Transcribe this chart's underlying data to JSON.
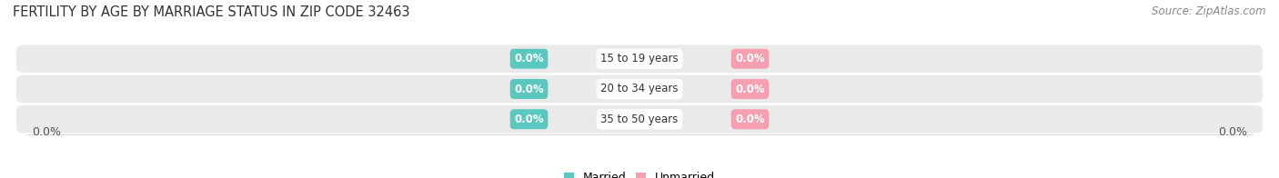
{
  "title": "FERTILITY BY AGE BY MARRIAGE STATUS IN ZIP CODE 32463",
  "source": "Source: ZipAtlas.com",
  "categories": [
    "15 to 19 years",
    "20 to 34 years",
    "35 to 50 years"
  ],
  "married_values": [
    0.0,
    0.0,
    0.0
  ],
  "unmarried_values": [
    0.0,
    0.0,
    0.0
  ],
  "married_color": "#5BC8C0",
  "unmarried_color": "#F4A0B0",
  "bar_bg_color_odd": "#EEEEEE",
  "bar_bg_color_even": "#E8E8E8",
  "title_fontsize": 10.5,
  "source_fontsize": 8.5,
  "label_fontsize": 8.5,
  "tick_fontsize": 9,
  "legend_fontsize": 9,
  "background_color": "#FFFFFF",
  "bar_height": 0.62,
  "x_axis_label_left": "0.0%",
  "x_axis_label_right": "0.0%"
}
